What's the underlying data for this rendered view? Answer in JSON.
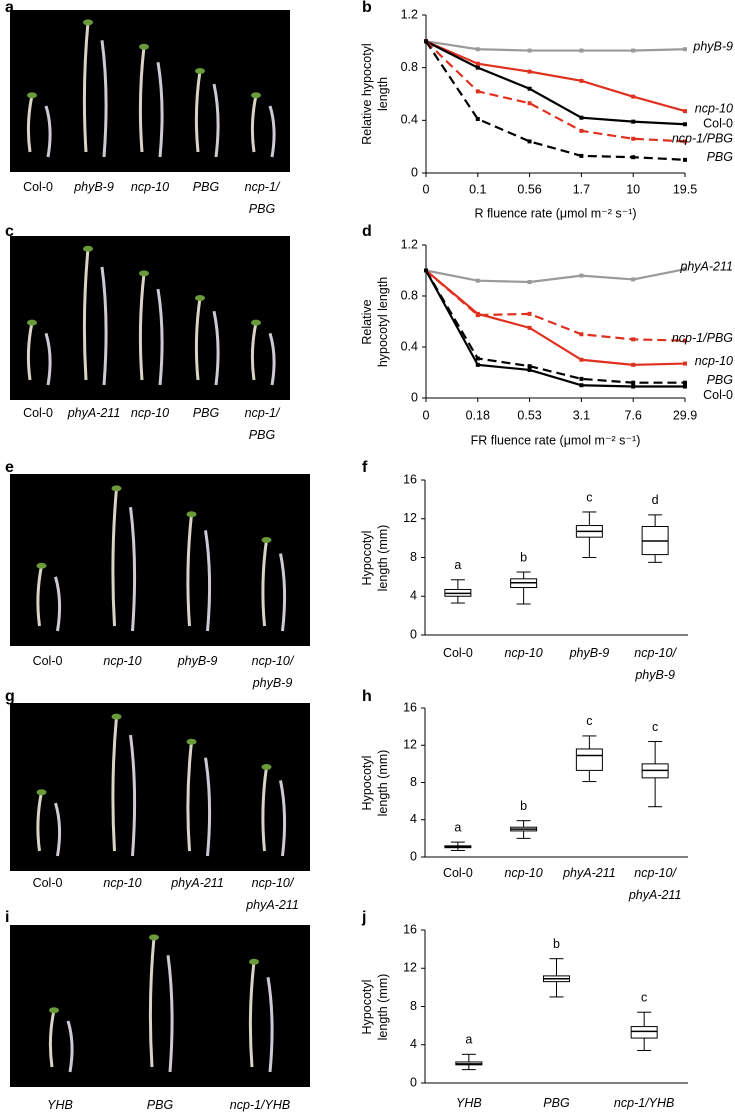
{
  "photos": [
    {
      "panel": "a",
      "labels": [
        "Col-0",
        "phyB-9",
        "ncp-10",
        "PBG",
        "ncp-1/\nPBG"
      ],
      "italic": [
        false,
        true,
        true,
        true,
        true
      ]
    },
    {
      "panel": "c",
      "labels": [
        "Col-0",
        "phyA-211",
        "ncp-10",
        "PBG",
        "ncp-1/\nPBG"
      ],
      "italic": [
        false,
        true,
        true,
        true,
        true
      ]
    },
    {
      "panel": "e",
      "labels": [
        "Col-0",
        "ncp-10",
        "phyB-9",
        "ncp-10/\nphyB-9"
      ],
      "italic": [
        false,
        true,
        true,
        true
      ]
    },
    {
      "panel": "g",
      "labels": [
        "Col-0",
        "ncp-10",
        "phyA-211",
        "ncp-10/\nphyA-211"
      ],
      "italic": [
        false,
        true,
        true,
        true
      ]
    },
    {
      "panel": "i",
      "labels": [
        "YHB",
        "PBG",
        "ncp-1/YHB"
      ],
      "italic": [
        true,
        true,
        true
      ]
    }
  ],
  "chart_data": [
    {
      "type": "line",
      "panel": "b",
      "ylabel": "Relative hypocotyl\nlength",
      "xlabel": "R fluence rate (μmol m⁻² s⁻¹)",
      "categories": [
        "0",
        "0.1",
        "0.56",
        "1.7",
        "10",
        "19.5"
      ],
      "ylim": [
        0,
        1.2
      ],
      "yticks": [
        0,
        0.4,
        0.8,
        1.2
      ],
      "series": [
        {
          "name": "phyB-9",
          "color": "#9a9a9a",
          "dashed": false,
          "italic": true,
          "values": [
            1,
            0.94,
            0.93,
            0.93,
            0.93,
            0.94
          ]
        },
        {
          "name": "ncp-10",
          "color": "#e0301e",
          "dashed": false,
          "italic": true,
          "values": [
            1,
            0.83,
            0.77,
            0.7,
            0.58,
            0.47
          ]
        },
        {
          "name": "Col-0",
          "color": "#000000",
          "dashed": false,
          "italic": false,
          "values": [
            1,
            0.8,
            0.64,
            0.42,
            0.39,
            0.37
          ]
        },
        {
          "name": "ncp-1/PBG",
          "color": "#e0301e",
          "dashed": true,
          "italic": true,
          "values": [
            1,
            0.62,
            0.53,
            0.32,
            0.26,
            0.24
          ]
        },
        {
          "name": "PBG",
          "color": "#000000",
          "dashed": true,
          "italic": true,
          "values": [
            1,
            0.41,
            0.24,
            0.13,
            0.12,
            0.1
          ]
        }
      ]
    },
    {
      "type": "line",
      "panel": "d",
      "ylabel": "Relative\nhypocotyl length",
      "xlabel": "FR fluence rate (μmol m⁻² s⁻¹)",
      "categories": [
        "0",
        "0.18",
        "0.53",
        "3.1",
        "7.6",
        "29.9"
      ],
      "ylim": [
        0,
        1.2
      ],
      "yticks": [
        0,
        0.4,
        0.8,
        1.2
      ],
      "series": [
        {
          "name": "phyA-211",
          "color": "#9a9a9a",
          "dashed": false,
          "italic": true,
          "values": [
            1,
            0.92,
            0.91,
            0.96,
            0.93,
            1.01
          ]
        },
        {
          "name": "ncp-1/PBG",
          "color": "#e0301e",
          "dashed": true,
          "italic": true,
          "values": [
            1,
            0.65,
            0.66,
            0.5,
            0.46,
            0.45
          ]
        },
        {
          "name": "ncp-10",
          "color": "#e0301e",
          "dashed": false,
          "italic": true,
          "values": [
            1,
            0.66,
            0.55,
            0.3,
            0.26,
            0.27
          ]
        },
        {
          "name": "PBG",
          "color": "#000000",
          "dashed": true,
          "italic": true,
          "values": [
            1,
            0.31,
            0.25,
            0.15,
            0.12,
            0.12
          ]
        },
        {
          "name": "Col-0",
          "color": "#000000",
          "dashed": false,
          "italic": false,
          "values": [
            1,
            0.26,
            0.22,
            0.1,
            0.09,
            0.09
          ]
        }
      ]
    },
    {
      "type": "box",
      "panel": "f",
      "ylabel": "Hypocotyl\nlength (mm)",
      "ylim": [
        0,
        16
      ],
      "yticks": [
        0,
        4,
        8,
        12,
        16
      ],
      "categories": [
        "Col-0",
        "ncp-10",
        "phyB-9",
        "ncp-10/\nphyB-9"
      ],
      "italic": [
        false,
        true,
        true,
        true
      ],
      "letters": [
        "a",
        "b",
        "c",
        "d"
      ],
      "boxes": [
        {
          "min": 3.3,
          "q1": 4.0,
          "median": 4.3,
          "q3": 4.7,
          "max": 5.7
        },
        {
          "min": 3.2,
          "q1": 4.9,
          "median": 5.4,
          "q3": 5.8,
          "max": 6.5
        },
        {
          "min": 8.0,
          "q1": 10.1,
          "median": 10.7,
          "q3": 11.3,
          "max": 12.7
        },
        {
          "min": 7.5,
          "q1": 8.3,
          "median": 9.7,
          "q3": 11.2,
          "max": 12.4
        }
      ]
    },
    {
      "type": "box",
      "panel": "h",
      "ylabel": "Hypocotyl\nlength (mm)",
      "ylim": [
        0,
        16
      ],
      "yticks": [
        0,
        4,
        8,
        12,
        16
      ],
      "categories": [
        "Col-0",
        "ncp-10",
        "phyA-211",
        "ncp-10/\nphyA-211"
      ],
      "italic": [
        false,
        true,
        true,
        true
      ],
      "letters": [
        "a",
        "b",
        "c",
        "c"
      ],
      "boxes": [
        {
          "min": 0.7,
          "q1": 1.0,
          "median": 1.1,
          "q3": 1.2,
          "max": 1.6
        },
        {
          "min": 2.0,
          "q1": 2.8,
          "median": 3.0,
          "q3": 3.2,
          "max": 3.9
        },
        {
          "min": 8.1,
          "q1": 9.3,
          "median": 10.9,
          "q3": 11.6,
          "max": 13.0
        },
        {
          "min": 5.4,
          "q1": 8.5,
          "median": 9.3,
          "q3": 10.0,
          "max": 12.4
        }
      ]
    },
    {
      "type": "box",
      "panel": "j",
      "ylabel": "Hypocotyl\nlength (mm)",
      "ylim": [
        0,
        16
      ],
      "yticks": [
        0,
        4,
        8,
        12,
        16
      ],
      "categories": [
        "YHB",
        "PBG",
        "ncp-1/YHB"
      ],
      "italic": [
        true,
        true,
        true
      ],
      "letters": [
        "a",
        "b",
        "c"
      ],
      "boxes": [
        {
          "min": 1.4,
          "q1": 1.9,
          "median": 2.0,
          "q3": 2.2,
          "max": 3.0
        },
        {
          "min": 9.0,
          "q1": 10.6,
          "median": 10.9,
          "q3": 11.2,
          "max": 13.0
        },
        {
          "min": 3.4,
          "q1": 4.7,
          "median": 5.4,
          "q3": 5.9,
          "max": 7.4
        }
      ]
    }
  ]
}
